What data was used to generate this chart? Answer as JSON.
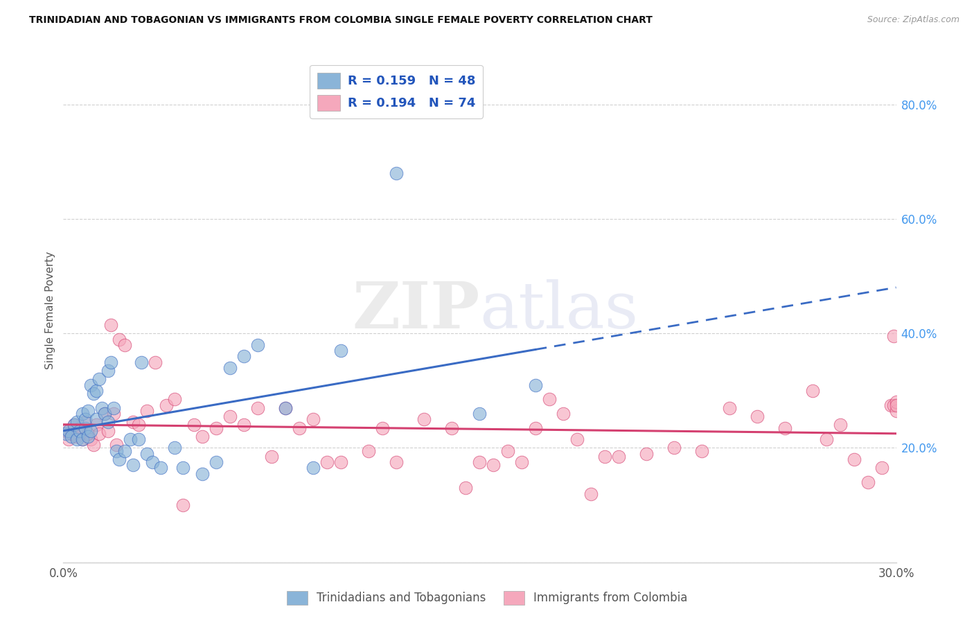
{
  "title": "TRINIDADIAN AND TOBAGONIAN VS IMMIGRANTS FROM COLOMBIA SINGLE FEMALE POVERTY CORRELATION CHART",
  "source": "Source: ZipAtlas.com",
  "ylabel": "Single Female Poverty",
  "xlim": [
    0.0,
    0.3
  ],
  "ylim": [
    0.0,
    0.88
  ],
  "x_tick_positions": [
    0.0,
    0.05,
    0.1,
    0.15,
    0.2,
    0.25,
    0.3
  ],
  "x_tick_labels": [
    "0.0%",
    "",
    "",
    "",
    "",
    "",
    "30.0%"
  ],
  "y_ticks_right": [
    0.2,
    0.4,
    0.6,
    0.8
  ],
  "y_tick_labels_right": [
    "20.0%",
    "40.0%",
    "60.0%",
    "80.0%"
  ],
  "legend_label_blue": "R = 0.159   N = 48",
  "legend_label_pink": "R = 0.194   N = 74",
  "series1_label": "Trinidadians and Tobagonians",
  "series2_label": "Immigrants from Colombia",
  "color_blue": "#8ab4d8",
  "color_pink": "#f5a8bc",
  "trendline_blue": "#3a6bc4",
  "trendline_pink": "#d44070",
  "grid_color": "#d0d0d0",
  "background": "#ffffff",
  "blue_x": [
    0.001,
    0.002,
    0.003,
    0.004,
    0.005,
    0.005,
    0.006,
    0.007,
    0.007,
    0.008,
    0.008,
    0.009,
    0.009,
    0.01,
    0.01,
    0.011,
    0.012,
    0.012,
    0.013,
    0.014,
    0.015,
    0.016,
    0.016,
    0.017,
    0.018,
    0.019,
    0.02,
    0.022,
    0.024,
    0.025,
    0.027,
    0.028,
    0.03,
    0.032,
    0.035,
    0.04,
    0.043,
    0.05,
    0.055,
    0.06,
    0.065,
    0.07,
    0.08,
    0.09,
    0.1,
    0.12,
    0.15,
    0.17
  ],
  "blue_y": [
    0.225,
    0.23,
    0.22,
    0.24,
    0.215,
    0.245,
    0.23,
    0.215,
    0.26,
    0.235,
    0.25,
    0.22,
    0.265,
    0.23,
    0.31,
    0.295,
    0.25,
    0.3,
    0.32,
    0.27,
    0.26,
    0.245,
    0.335,
    0.35,
    0.27,
    0.195,
    0.18,
    0.195,
    0.215,
    0.17,
    0.215,
    0.35,
    0.19,
    0.175,
    0.165,
    0.2,
    0.165,
    0.155,
    0.175,
    0.34,
    0.36,
    0.38,
    0.27,
    0.165,
    0.37,
    0.68,
    0.26,
    0.31
  ],
  "pink_x": [
    0.001,
    0.002,
    0.003,
    0.004,
    0.005,
    0.006,
    0.007,
    0.008,
    0.009,
    0.01,
    0.011,
    0.012,
    0.013,
    0.015,
    0.016,
    0.017,
    0.018,
    0.019,
    0.02,
    0.022,
    0.025,
    0.027,
    0.03,
    0.033,
    0.037,
    0.04,
    0.043,
    0.047,
    0.05,
    0.055,
    0.06,
    0.065,
    0.07,
    0.075,
    0.08,
    0.085,
    0.09,
    0.095,
    0.1,
    0.11,
    0.115,
    0.12,
    0.13,
    0.14,
    0.145,
    0.15,
    0.155,
    0.16,
    0.165,
    0.17,
    0.175,
    0.18,
    0.185,
    0.19,
    0.195,
    0.2,
    0.21,
    0.22,
    0.23,
    0.24,
    0.25,
    0.26,
    0.27,
    0.275,
    0.28,
    0.285,
    0.29,
    0.295,
    0.298,
    0.299,
    0.299,
    0.3,
    0.3,
    0.3
  ],
  "pink_y": [
    0.23,
    0.215,
    0.225,
    0.24,
    0.22,
    0.235,
    0.215,
    0.245,
    0.225,
    0.215,
    0.205,
    0.24,
    0.225,
    0.26,
    0.23,
    0.415,
    0.26,
    0.205,
    0.39,
    0.38,
    0.245,
    0.24,
    0.265,
    0.35,
    0.275,
    0.285,
    0.1,
    0.24,
    0.22,
    0.235,
    0.255,
    0.24,
    0.27,
    0.185,
    0.27,
    0.235,
    0.25,
    0.175,
    0.175,
    0.195,
    0.235,
    0.175,
    0.25,
    0.235,
    0.13,
    0.175,
    0.17,
    0.195,
    0.175,
    0.235,
    0.285,
    0.26,
    0.215,
    0.12,
    0.185,
    0.185,
    0.19,
    0.2,
    0.195,
    0.27,
    0.255,
    0.235,
    0.3,
    0.215,
    0.24,
    0.18,
    0.14,
    0.165,
    0.275,
    0.395,
    0.275,
    0.265,
    0.28,
    0.275
  ]
}
